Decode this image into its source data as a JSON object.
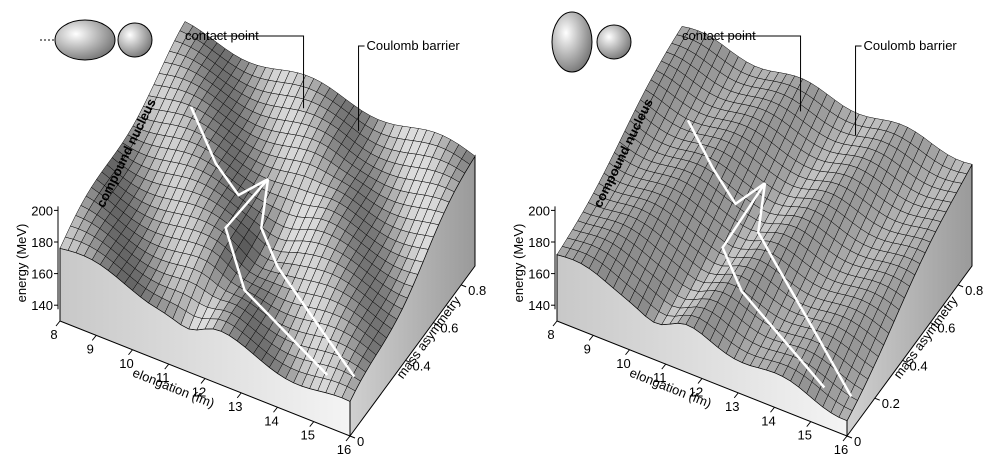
{
  "panels": [
    {
      "annotations": {
        "contact": "contact point",
        "barrier": "Coulomb barrier",
        "compound": "compound nucleus"
      },
      "energy": {
        "label": "energy (MeV)",
        "ticks": [
          140,
          160,
          180,
          200
        ]
      },
      "elongation": {
        "label": "elongation (fm)",
        "ticks": [
          8,
          9,
          10,
          11,
          12,
          13,
          14,
          15,
          16
        ]
      },
      "asymmetry": {
        "label": "mass asymmetry",
        "ticks": [
          0,
          0.4,
          0.6,
          0.8
        ]
      }
    },
    {
      "annotations": {
        "contact": "contact point",
        "barrier": "Coulomb barrier",
        "compound": "compound nucleus"
      },
      "energy": {
        "label": "energy (MeV)",
        "ticks": [
          140,
          160,
          180,
          200
        ]
      },
      "elongation": {
        "label": "elongation (fm)",
        "ticks": [
          8,
          9,
          10,
          11,
          12,
          13,
          14,
          15,
          16
        ]
      },
      "asymmetry": {
        "label": "mass asymmetry",
        "ticks": [
          0,
          0.2,
          0.4,
          0.6,
          0.8
        ]
      }
    }
  ]
}
